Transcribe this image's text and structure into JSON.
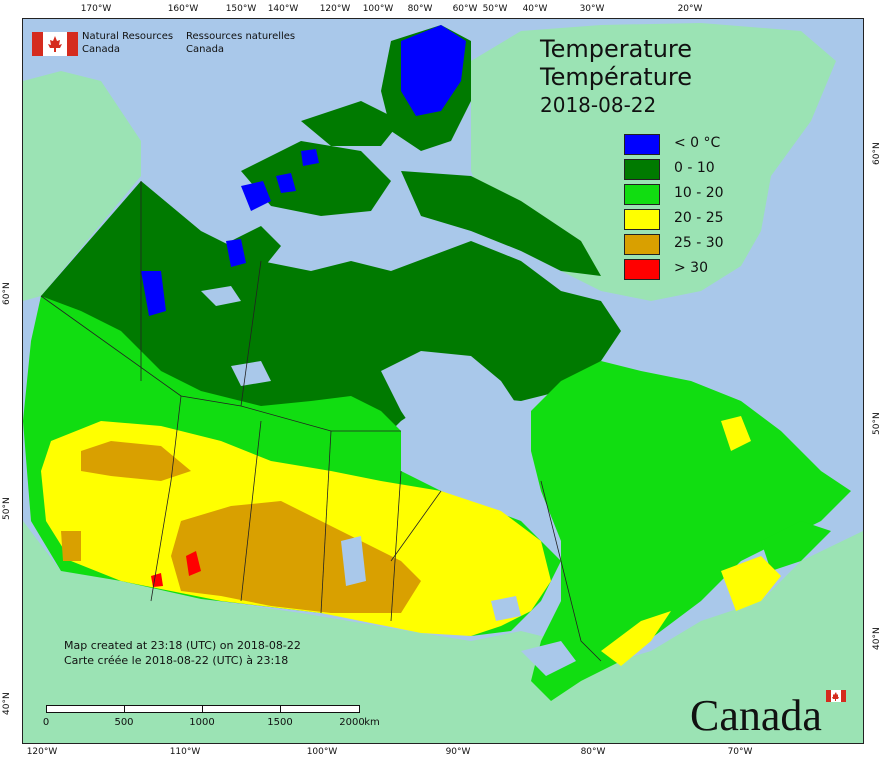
{
  "header": {
    "org_en_line1": "Natural Resources",
    "org_en_line2": "Canada",
    "org_fr_line1": "Ressources naturelles",
    "org_fr_line2": "Canada"
  },
  "title": {
    "en": "Temperature",
    "fr": "Température",
    "date": "2018-08-22"
  },
  "legend": [
    {
      "label": "< 0 °C",
      "color": "#0000ff"
    },
    {
      "label": "0 - 10",
      "color": "#007a00"
    },
    {
      "label": "10 - 20",
      "color": "#11dd11"
    },
    {
      "label": "20 - 25",
      "color": "#ffff00"
    },
    {
      "label": "25 - 30",
      "color": "#d9a000"
    },
    {
      "label": "> 30",
      "color": "#ff0000"
    }
  ],
  "credits": {
    "en": "Map created at 23:18 (UTC) on 2018-08-22",
    "fr": "Carte créée le 2018-08-22 (UTC) à 23:18"
  },
  "scale": {
    "labels": [
      "0",
      "500",
      "1000",
      "1500",
      "2000"
    ],
    "unit": "km"
  },
  "graticule": {
    "top": [
      "170°W",
      "160°W",
      "150°W",
      "140°W",
      "120°W",
      "100°W",
      "80°W",
      "60°W",
      "50°W",
      "40°W",
      "30°W",
      "20°W"
    ],
    "bottom": [
      "120°W",
      "110°W",
      "100°W",
      "90°W",
      "80°W",
      "70°W"
    ],
    "left": [
      "60°N",
      "50°N",
      "40°N"
    ],
    "right": [
      "60°N",
      "50°N",
      "40°N"
    ]
  },
  "wordmark": "Canada",
  "colors": {
    "ocean": "#a9c8ea",
    "land_other": "#9be3b4",
    "lake": "#a9c8ea"
  }
}
